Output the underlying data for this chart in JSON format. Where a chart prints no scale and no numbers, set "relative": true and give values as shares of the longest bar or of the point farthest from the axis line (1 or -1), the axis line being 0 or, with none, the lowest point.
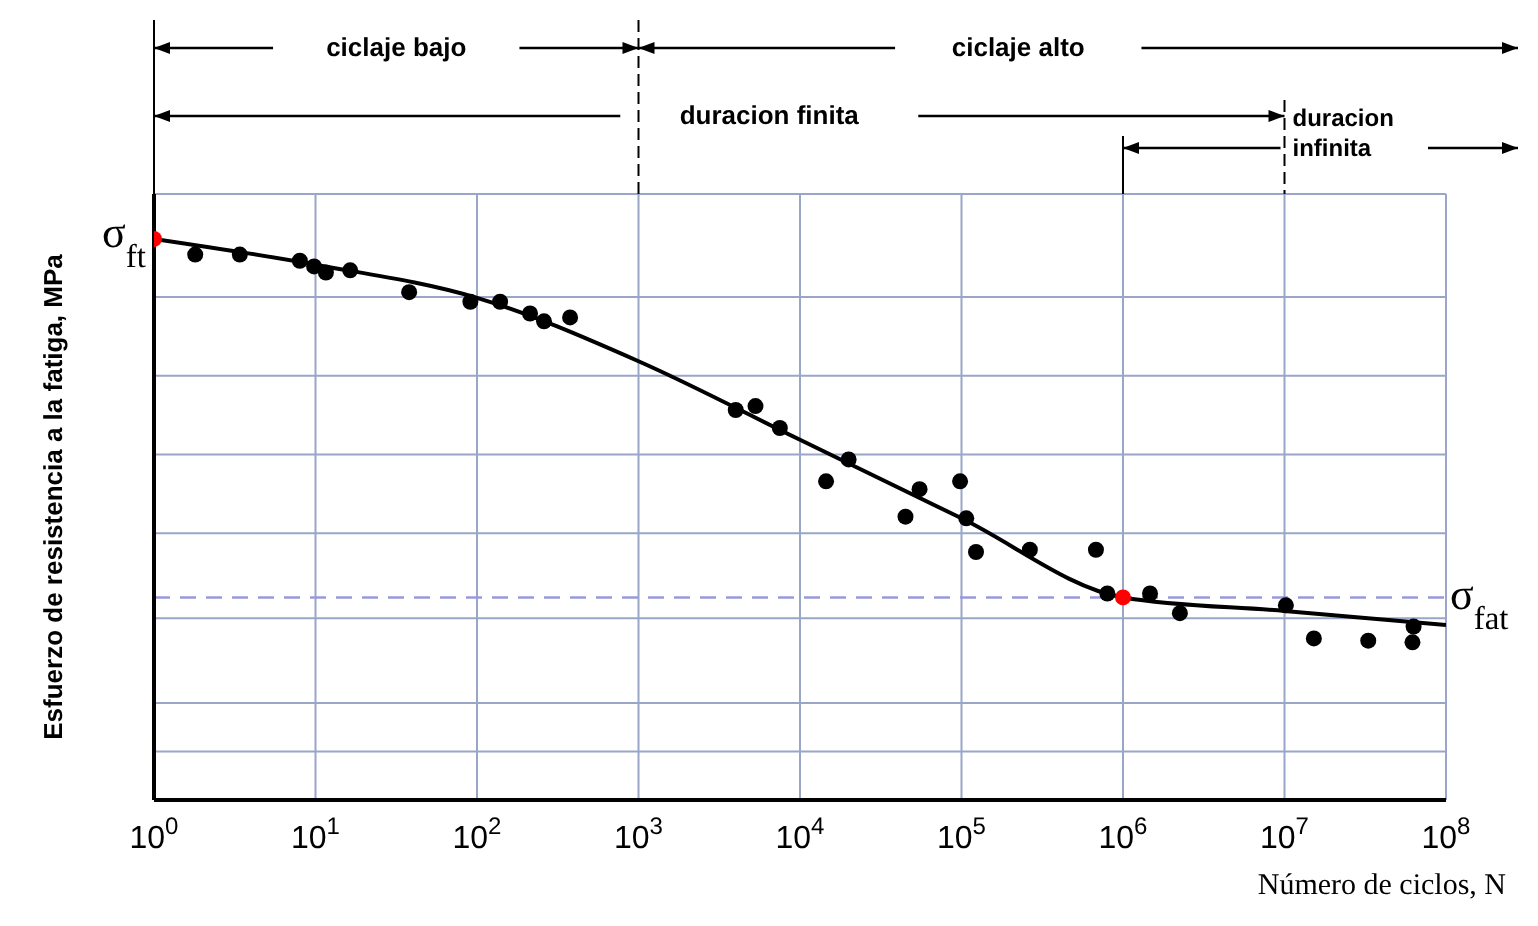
{
  "chart_data": {
    "type": "scatter",
    "relative": true,
    "log": "x",
    "xlabel": "Número de ciclos, N",
    "ylabel": "Esfuerzo de resistencia a la fatiga, MPa",
    "xlim": [
      1,
      100000000
    ],
    "xticks": [
      {
        "value": 1,
        "label": "10$^{0}$"
      },
      {
        "value": 10,
        "label": "10$^{1}$"
      },
      {
        "value": 100,
        "label": "10$^{2}$"
      },
      {
        "value": 1000,
        "label": "10$^{3}$"
      },
      {
        "value": 10000,
        "label": "10$^{4}$"
      },
      {
        "value": 100000,
        "label": "10$^{5}$"
      },
      {
        "value": 1000000,
        "label": "10$^{6}$"
      },
      {
        "value": 10000000,
        "label": "10$^{7}$"
      },
      {
        "value": 100000000,
        "label": "10$^{8}$"
      }
    ],
    "grid": true,
    "series": [
      {
        "type": "line",
        "color": "#000000",
        "marker": "none",
        "line_style": "solid",
        "x": [
          1,
          10,
          100,
          1000,
          10000,
          100000,
          1000000,
          10000000,
          100000000
        ],
        "values": [
          1.0,
          0.954,
          0.895,
          0.782,
          0.642,
          0.502,
          0.361,
          0.337,
          0.312
        ]
      },
      {
        "color": "#000000",
        "marker": "circle",
        "x": [
          1.8,
          3.4,
          8.0,
          9.8,
          11.6,
          16.4,
          38,
          91,
          139,
          213,
          260,
          377,
          4000,
          5300,
          7500,
          20000,
          14500,
          45000,
          55000,
          98000,
          107000,
          123000,
          265000,
          680000,
          800000,
          1470000,
          2250000,
          10200000,
          15200000,
          33000000,
          63000000,
          62000000
        ],
        "values": [
          0.972,
          0.972,
          0.961,
          0.951,
          0.94,
          0.944,
          0.905,
          0.888,
          0.888,
          0.867,
          0.853,
          0.86,
          0.695,
          0.702,
          0.663,
          0.607,
          0.568,
          0.505,
          0.554,
          0.568,
          0.502,
          0.442,
          0.446,
          0.446,
          0.368,
          0.368,
          0.333,
          0.347,
          0.288,
          0.284,
          0.309,
          0.281
        ]
      },
      {
        "color": "#ff0000",
        "marker": "circle",
        "x": [
          1,
          1000000
        ],
        "values": [
          1.0,
          0.361
        ]
      }
    ],
    "ref_lines": [
      {
        "axis": "y",
        "value": 0.361,
        "label": "σ$_{fat}$",
        "color": "#9999dd",
        "line_style": "dashed"
      }
    ],
    "annotations": [
      "ciclaje bajo",
      "ciclaje alto",
      "duracion finita",
      "duracion infinita",
      {
        "text": "σ$_{ft}$",
        "x": 1,
        "y": 1.0
      }
    ]
  }
}
